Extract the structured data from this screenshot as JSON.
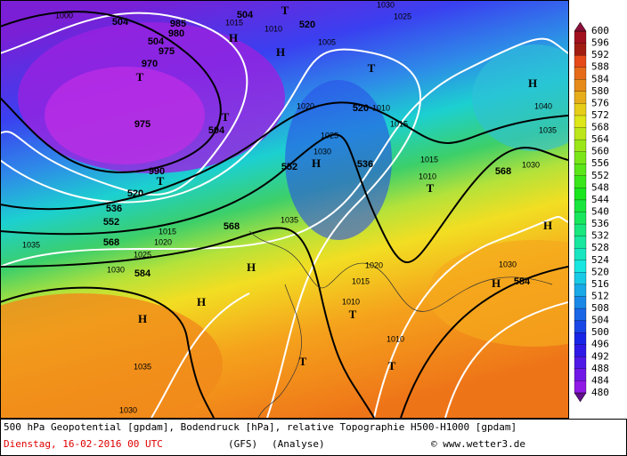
{
  "legend": {
    "labels": [
      600,
      596,
      592,
      588,
      584,
      580,
      576,
      572,
      568,
      564,
      560,
      556,
      552,
      548,
      544,
      540,
      536,
      532,
      528,
      524,
      520,
      516,
      512,
      508,
      504,
      500,
      496,
      492,
      488,
      484,
      480
    ]
  },
  "map": {
    "labels": [
      "504",
      "504",
      "520",
      "504",
      "520",
      "504",
      "552",
      "536",
      "568",
      "520",
      "536",
      "552",
      "568",
      "568",
      "584",
      "584",
      "980",
      "985",
      "975",
      "970",
      "975",
      "990",
      "1010",
      "1015",
      "1020",
      "1025",
      "1030",
      "1035",
      "1035",
      "1030",
      "1025",
      "1020",
      "1015",
      "1020",
      "1015",
      "1010",
      "1010",
      "1035",
      "1030",
      "1030",
      "1040",
      "1035",
      "1030",
      "1015",
      "1010",
      "1005",
      "1010",
      "1015",
      "1025",
      "1030",
      "1000"
    ],
    "markers": [
      "H",
      "H",
      "T",
      "T",
      "T",
      "H",
      "T",
      "T",
      "H",
      "H",
      "H",
      "H",
      "H",
      "T",
      "T",
      "T",
      "H",
      "T"
    ]
  },
  "footer": {
    "description": "500 hPa Geopotential [gpdam], Bodendruck [hPa], relative Topographie H500-H1000 [gpdam]",
    "date": "Dienstag, 16-02-2016  00 UTC",
    "model": "(GFS)",
    "run": "(Analyse)",
    "source": "© www.wetter3.de"
  }
}
